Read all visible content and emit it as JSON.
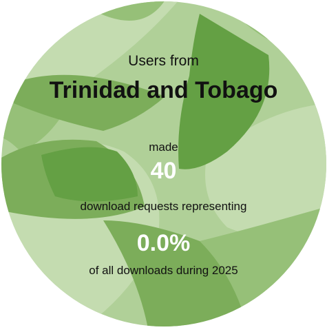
{
  "colors": {
    "base": "#b0d098",
    "light": "#c4dcb0",
    "mid": "#96c078",
    "dark": "#7cad5a",
    "darkest": "#64a044",
    "highlight_text": "#ffffff",
    "text": "#111111"
  },
  "infographic": {
    "pre_title": "Users from",
    "country": "Trinidad and Tobago",
    "made_label": "made",
    "request_count": "40",
    "requests_label": "download requests representing",
    "percentage": "0.0%",
    "period_label": "of all downloads during 2025"
  }
}
